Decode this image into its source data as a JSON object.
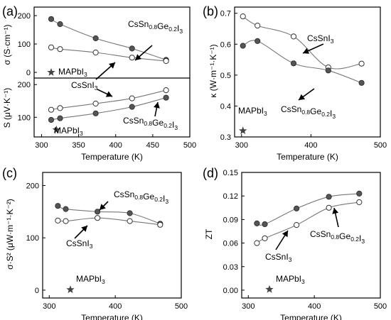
{
  "colors": {
    "filled_marker": "#555555",
    "open_marker": "#ffffff",
    "fit_line": "#777777",
    "star": "#444444"
  },
  "chart_data": [
    {
      "panel": "(a)",
      "type": "scatter",
      "xlabel": "Temperature (K)",
      "xlim": [
        290,
        500
      ],
      "xticks": [
        "300",
        "350",
        "400",
        "450",
        "500"
      ],
      "subplots": [
        {
          "ylabel": "σ (S·cm⁻¹)",
          "ylim": [
            -20,
            230
          ],
          "yticks": [
            "0",
            "100",
            "200"
          ],
          "series": [
            {
              "name": "CsSn0.8Ge0.2I3",
              "marker": "filled",
              "x": [
                313,
                325,
                373,
                422,
                468
              ],
              "y": [
                188,
                170,
                120,
                84,
                44
              ]
            },
            {
              "name": "CsSnI3",
              "marker": "open",
              "x": [
                313,
                325,
                373,
                422,
                468
              ],
              "y": [
                88,
                82,
                70,
                52,
                40
              ]
            }
          ],
          "star_label": "MAPbI3",
          "star": {
            "x": 313,
            "y": 0
          }
        },
        {
          "ylabel": "S (μV·K⁻¹)",
          "ylim": [
            40,
            220
          ],
          "yticks": [
            "100",
            "200"
          ],
          "series": [
            {
              "name": "CsSnI3",
              "marker": "open",
              "x": [
                313,
                325,
                373,
                422,
                468
              ],
              "y": [
                123,
                128,
                142,
                158,
                183
              ]
            },
            {
              "name": "CsSn0.8Ge0.2I3",
              "marker": "filled",
              "x": [
                313,
                325,
                373,
                422,
                468
              ],
              "y": [
                92,
                97,
                112,
                132,
                160
              ]
            }
          ],
          "star_label": "MAPbI3",
          "star": {
            "x": 320,
            "y": 62
          }
        }
      ]
    },
    {
      "panel": "(b)",
      "type": "scatter",
      "xlabel": "Temperature (K)",
      "ylabel": "κ (W·m⁻¹·K⁻¹)",
      "xlim": [
        290,
        500
      ],
      "ylim": [
        0.3,
        0.72
      ],
      "xticks": [
        "300",
        "400",
        "500"
      ],
      "yticks": [
        "0.3",
        "0.4",
        "0.5",
        "0.6",
        "0.7"
      ],
      "series": [
        {
          "name": "CsSnI3",
          "marker": "open",
          "x": [
            302,
            323,
            375,
            425,
            473
          ],
          "y": [
            0.69,
            0.66,
            0.625,
            0.525,
            0.537
          ]
        },
        {
          "name": "CsSn0.8Ge0.2I3",
          "marker": "filled",
          "x": [
            302,
            323,
            375,
            425,
            473
          ],
          "y": [
            0.595,
            0.61,
            0.538,
            0.515,
            0.475
          ]
        }
      ],
      "star_label": "MAPbI3",
      "star": {
        "x": 302,
        "y": 0.32
      }
    },
    {
      "panel": "(c)",
      "type": "scatter",
      "xlabel": "Temperature (K)",
      "ylabel": "σ·S² (μW·m⁻¹·K⁻²)",
      "xlim": [
        290,
        500
      ],
      "ylim": [
        -15,
        225
      ],
      "xticks": [
        "300",
        "400",
        "500"
      ],
      "yticks": [
        "0",
        "100",
        "200"
      ],
      "series": [
        {
          "name": "CsSn0.8Ge0.2I3",
          "marker": "filled",
          "x": [
            313,
            325,
            373,
            422,
            468
          ],
          "y": [
            161,
            155,
            150,
            147,
            127
          ]
        },
        {
          "name": "CsSnI3",
          "marker": "open",
          "x": [
            313,
            325,
            373,
            422,
            468
          ],
          "y": [
            133,
            132,
            138,
            132,
            125
          ]
        }
      ],
      "star_label": "MAPbI3",
      "star": {
        "x": 332,
        "y": 1
      }
    },
    {
      "panel": "(d)",
      "type": "scatter",
      "xlabel": "Temperature (K)",
      "ylabel": "ZT",
      "xlim": [
        290,
        500
      ],
      "ylim": [
        -0.01,
        0.15
      ],
      "xticks": [
        "300",
        "400",
        "500"
      ],
      "yticks": [
        "0.00",
        "0.03",
        "0.06",
        "0.09",
        "0.12",
        "0.15"
      ],
      "series": [
        {
          "name": "CsSn0.8Ge0.2I3",
          "marker": "filled",
          "x": [
            313,
            325,
            373,
            422,
            468
          ],
          "y": [
            0.085,
            0.084,
            0.104,
            0.119,
            0.123
          ]
        },
        {
          "name": "CsSnI3",
          "marker": "open",
          "x": [
            313,
            325,
            373,
            422,
            468
          ],
          "y": [
            0.06,
            0.066,
            0.083,
            0.105,
            0.112
          ]
        }
      ],
      "star_label": "MAPbI3",
      "star": {
        "x": 332,
        "y": 0.001
      }
    }
  ]
}
